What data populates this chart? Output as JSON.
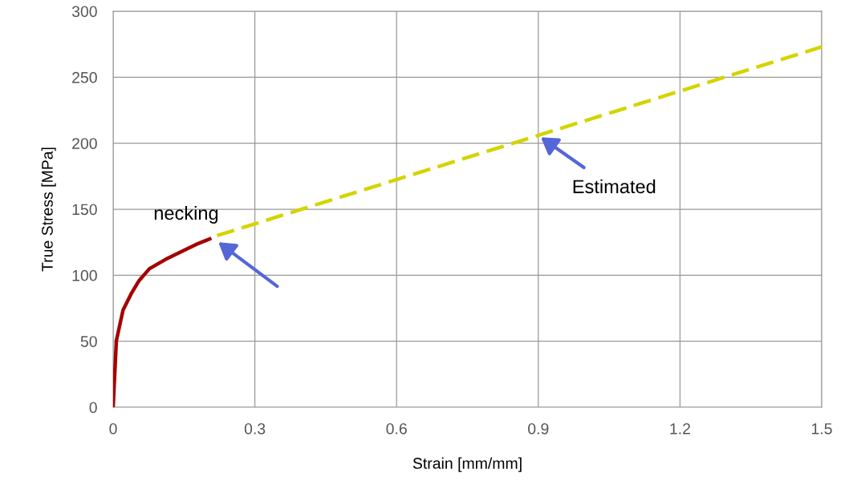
{
  "chart_data": {
    "type": "line",
    "xlabel": "Strain [mm/mm]",
    "ylabel": "True Stress [MPa]",
    "series": [
      {
        "color": "#a50000",
        "line_style": "solid",
        "x": [
          0,
          0.0068,
          0.021,
          0.038,
          0.055,
          0.077,
          0.111,
          0.151,
          0.18,
          0.208
        ],
        "values": [
          0,
          50.4,
          73.7,
          85.8,
          96,
          105,
          112,
          119,
          124,
          128
        ]
      },
      {
        "color": "#d4d400",
        "line_style": "dashed",
        "x": [
          0.22,
          1.5
        ],
        "values": [
          130,
          273
        ]
      }
    ],
    "annotations": [
      "necking",
      "Estimated"
    ],
    "xlim": [
      0,
      1.5
    ],
    "ylim": [
      0,
      300
    ],
    "xticks": [
      0,
      0.3,
      0.6,
      0.9,
      1.2,
      1.5
    ],
    "yticks": [
      0,
      50,
      100,
      150,
      200,
      250,
      300
    ],
    "grid": true,
    "marker": "none"
  }
}
